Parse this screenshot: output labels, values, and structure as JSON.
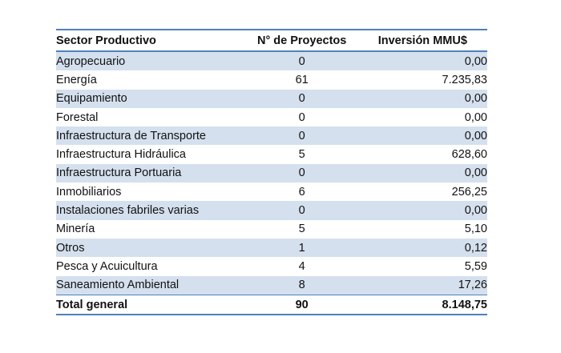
{
  "table": {
    "columns": [
      {
        "label": "Sector Productivo"
      },
      {
        "label": "N° de Proyectos"
      },
      {
        "label": "Inversión MMU$"
      }
    ],
    "rows": [
      [
        "Agropecuario",
        "0",
        "0,00"
      ],
      [
        "Energía",
        "61",
        "7.235,83"
      ],
      [
        "Equipamiento",
        "0",
        "0,00"
      ],
      [
        "Forestal",
        "0",
        "0,00"
      ],
      [
        "Infraestructura de Transporte",
        "0",
        "0,00"
      ],
      [
        "Infraestructura Hidráulica",
        "5",
        "628,60"
      ],
      [
        "Infraestructura Portuaria",
        "0",
        "0,00"
      ],
      [
        "Inmobiliarios",
        "6",
        "256,25"
      ],
      [
        "Instalaciones fabriles varias",
        "0",
        "0,00"
      ],
      [
        "Minería",
        "5",
        "5,10"
      ],
      [
        "Otros",
        "1",
        "0,12"
      ],
      [
        "Pesca y Acuicultura",
        "4",
        "5,59"
      ],
      [
        "Saneamiento Ambiental",
        "8",
        "17,26"
      ]
    ],
    "total": [
      "Total general",
      "90",
      "8.148,75"
    ],
    "colors": {
      "border_blue": "#4F81BD",
      "stripe_blue": "#D5E0EE",
      "text": "#111111",
      "background": "#FFFFFF"
    }
  }
}
